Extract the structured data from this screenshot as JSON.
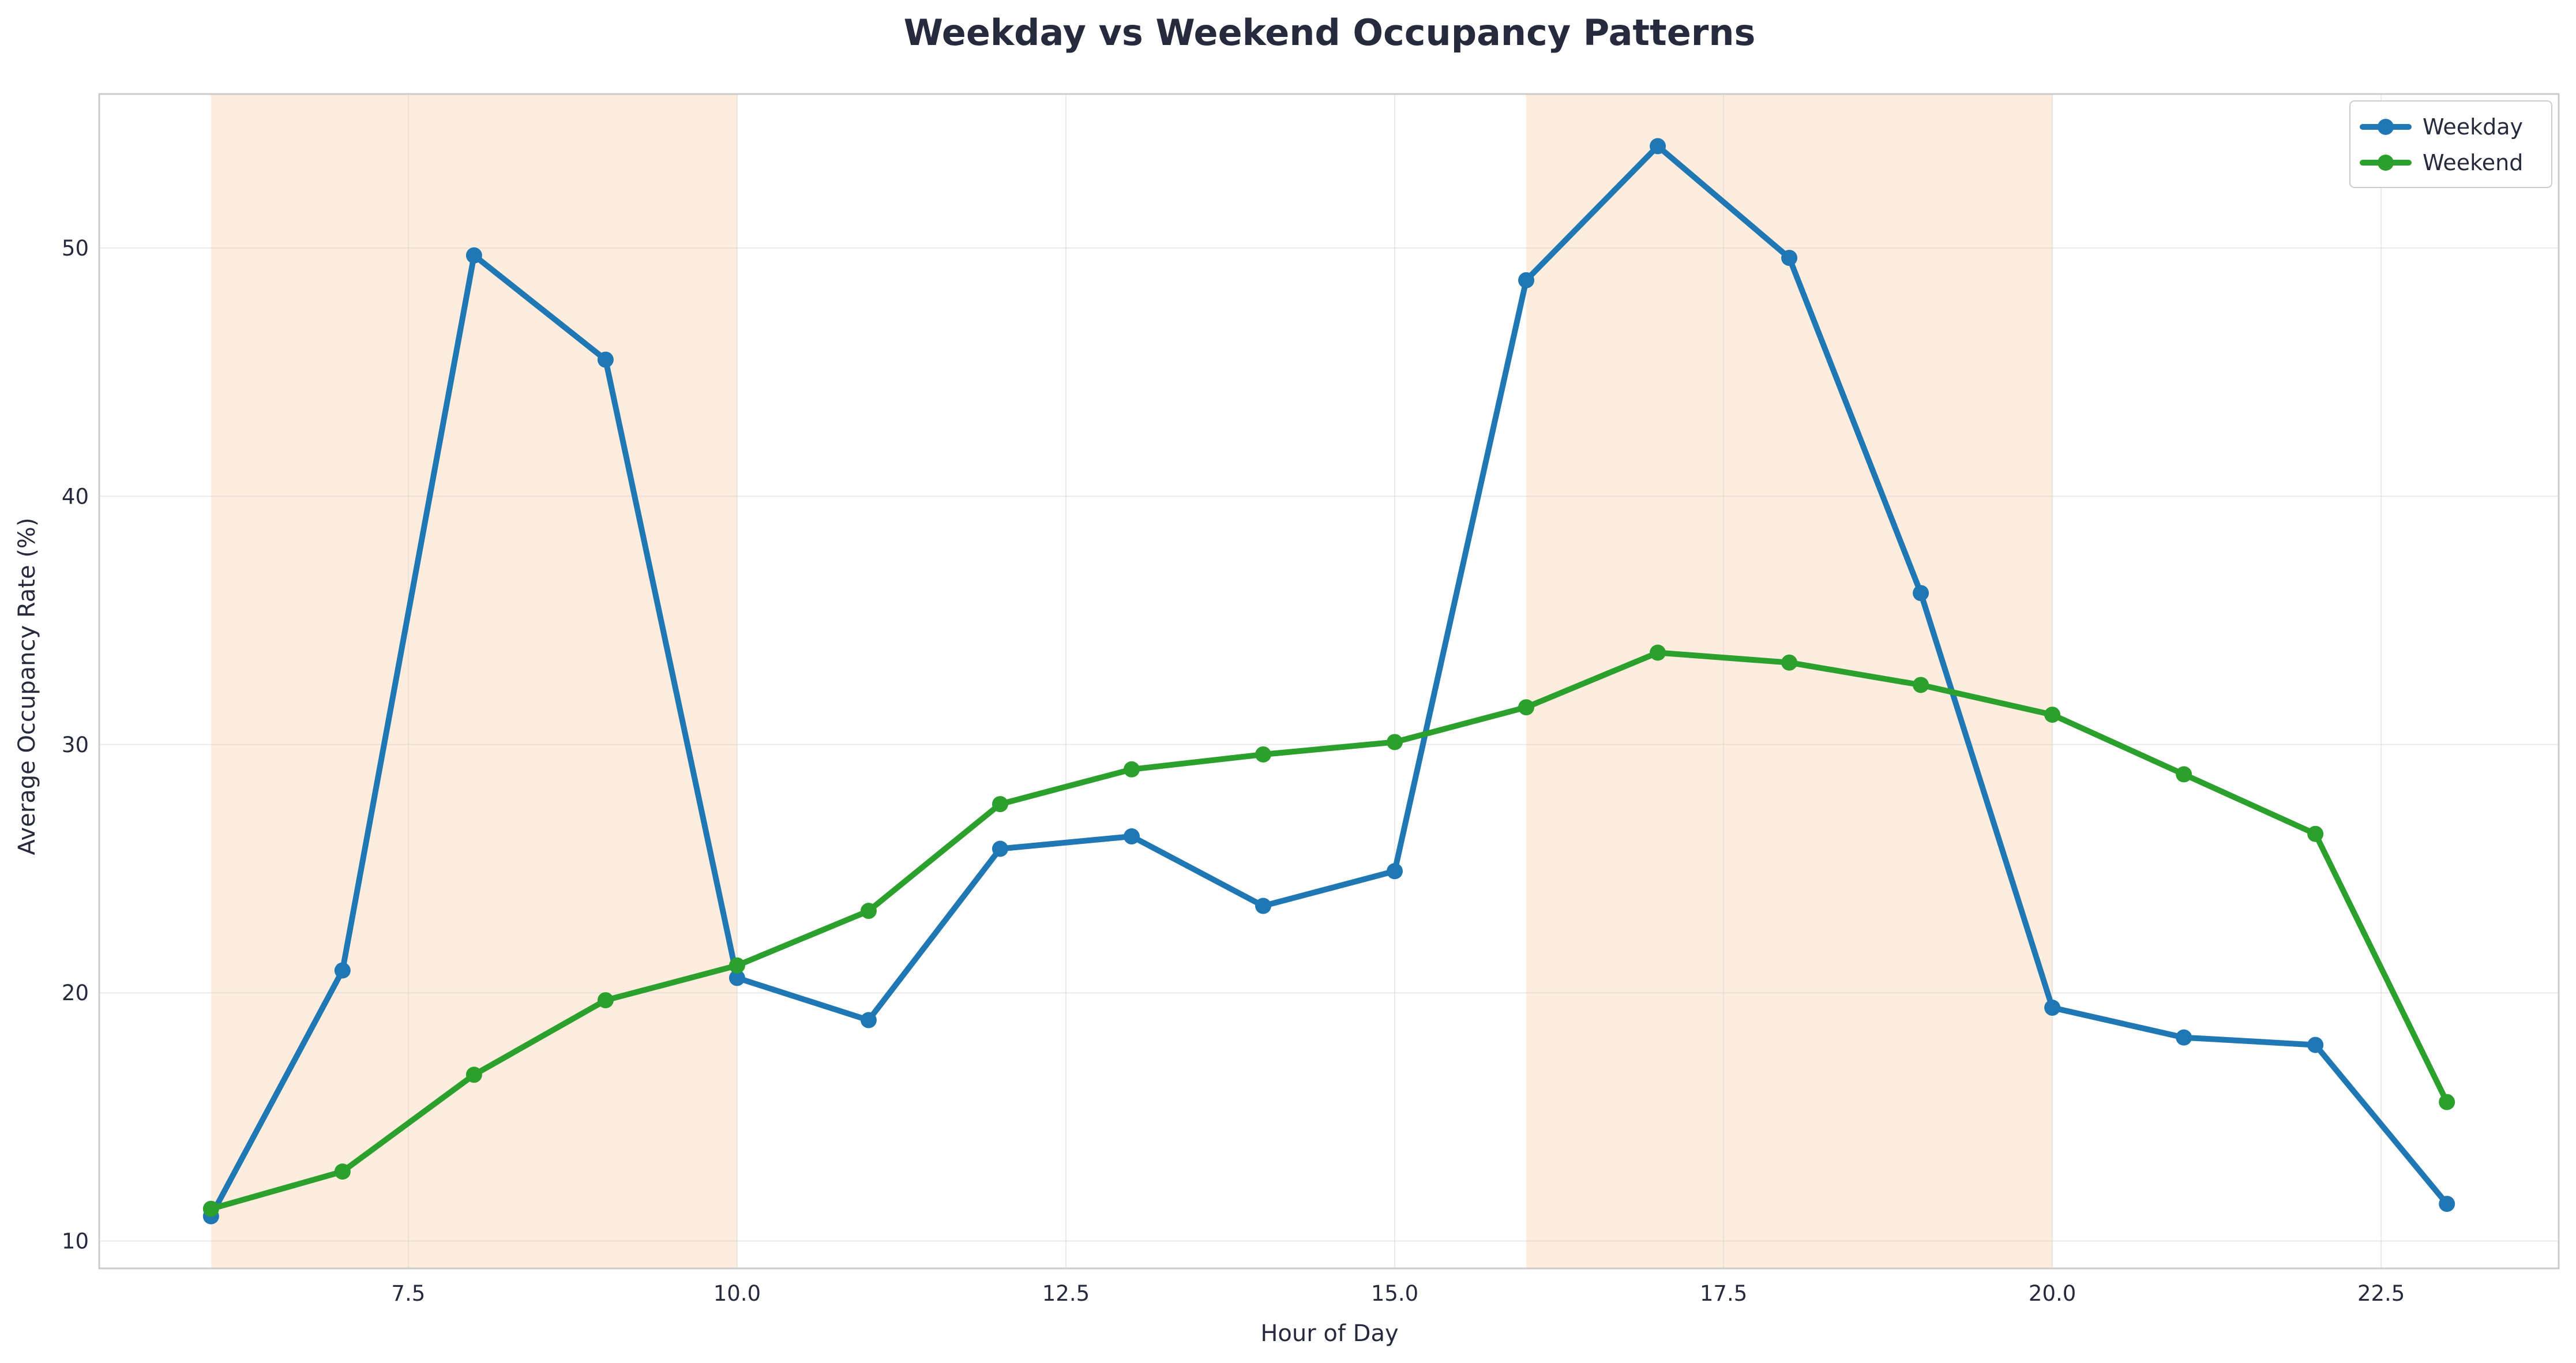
{
  "chart_data": {
    "type": "line",
    "title": "Weekday vs Weekend Occupancy Patterns",
    "xlabel": "Hour of Day",
    "ylabel": "Average Occupancy Rate (%)",
    "xlim": [
      5.15,
      23.85
    ],
    "ylim": [
      8.9,
      56.2
    ],
    "x_ticks": [
      7.5,
      10.0,
      12.5,
      15.0,
      17.5,
      20.0,
      22.5
    ],
    "x_tick_labels": [
      "7.5",
      "10.0",
      "12.5",
      "15.0",
      "17.5",
      "20.0",
      "22.5"
    ],
    "y_ticks": [
      10,
      20,
      30,
      40,
      50
    ],
    "y_tick_labels": [
      "10",
      "20",
      "30",
      "40",
      "50"
    ],
    "grid": true,
    "legend_position": "top-right",
    "x": [
      6,
      7,
      8,
      9,
      10,
      11,
      12,
      13,
      14,
      15,
      16,
      17,
      18,
      19,
      20,
      21,
      22,
      23
    ],
    "series": [
      {
        "name": "Weekday",
        "color": "#1f77b4",
        "values": [
          11.0,
          20.9,
          49.7,
          45.5,
          20.6,
          18.9,
          25.8,
          26.3,
          23.5,
          24.9,
          48.7,
          54.1,
          49.6,
          36.1,
          19.4,
          18.2,
          17.9,
          11.5
        ]
      },
      {
        "name": "Weekend",
        "color": "#2ca02c",
        "values": [
          11.3,
          12.8,
          16.7,
          19.7,
          21.1,
          23.3,
          27.6,
          29.0,
          29.6,
          30.1,
          31.5,
          33.7,
          33.3,
          32.4,
          31.2,
          28.8,
          26.4,
          15.6
        ]
      }
    ],
    "shaded_regions": [
      {
        "x_start": 6,
        "x_end": 10,
        "color": "#fde8d6"
      },
      {
        "x_start": 16,
        "x_end": 20,
        "color": "#fde8d6"
      }
    ]
  }
}
